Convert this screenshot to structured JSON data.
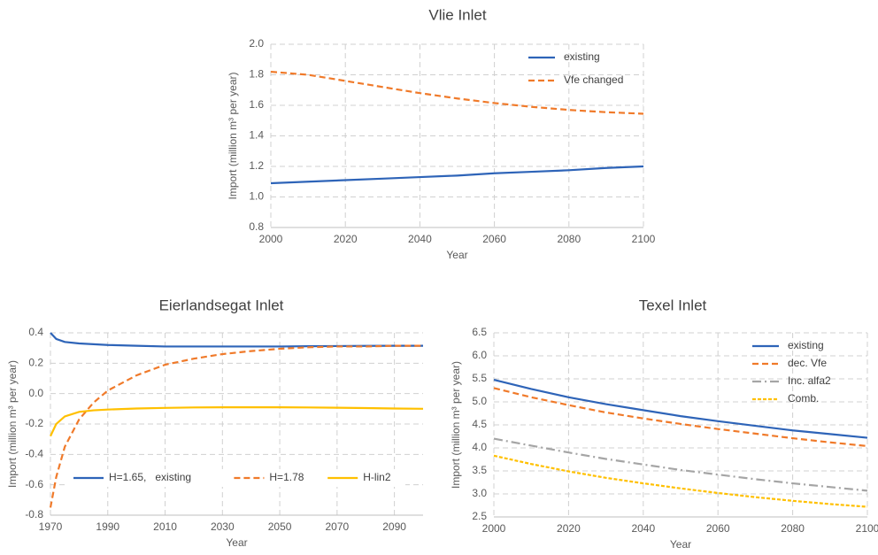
{
  "chart_data": [
    {
      "type": "line",
      "title": "Vlie Inlet",
      "x_label": "Year",
      "y_label": "Import (million m³ per year)",
      "x": [
        2000,
        2010,
        2020,
        2030,
        2040,
        2050,
        2060,
        2070,
        2080,
        2090,
        2100
      ],
      "series": [
        {
          "name": "existing",
          "color": "#2e64b8",
          "style": "solid",
          "values": [
            1.09,
            1.1,
            1.11,
            1.12,
            1.13,
            1.14,
            1.155,
            1.165,
            1.175,
            1.19,
            1.2
          ]
        },
        {
          "name": "Vfe changed",
          "color": "#f07a2a",
          "style": "dashed",
          "values": [
            1.82,
            1.8,
            1.76,
            1.72,
            1.68,
            1.645,
            1.615,
            1.59,
            1.57,
            1.555,
            1.545
          ]
        }
      ],
      "xlim": [
        2000,
        2100
      ],
      "xticks": [
        2000,
        2020,
        2040,
        2060,
        2080,
        2100
      ],
      "ylim": [
        0.8,
        2.0
      ],
      "yticks": [
        0.8,
        {
          "value": 1,
          "label": "1.0"
        },
        1.2,
        1.4,
        1.6,
        1.8,
        {
          "value": 2,
          "label": "2.0"
        }
      ],
      "grid": true,
      "legend": "upper right"
    },
    {
      "type": "line",
      "title": "Eierlandsegat Inlet",
      "x_label": "Year",
      "y_label": "Import (million m³ per year)",
      "x": [
        1970,
        1972,
        1975,
        1980,
        1985,
        1990,
        2000,
        2010,
        2020,
        2030,
        2040,
        2050,
        2060,
        2070,
        2080,
        2090,
        2100
      ],
      "series": [
        {
          "name": "H=1.65,   existing",
          "color": "#2e64b8",
          "style": "solid",
          "values": [
            0.4,
            0.36,
            0.34,
            0.33,
            0.325,
            0.32,
            0.315,
            0.31,
            0.31,
            0.31,
            0.31,
            0.31,
            0.312,
            0.313,
            0.314,
            0.315,
            0.315
          ]
        },
        {
          "name": "H=1.78",
          "color": "#f07a2a",
          "style": "dashed",
          "values": [
            -0.75,
            -0.55,
            -0.35,
            -0.17,
            -0.06,
            0.02,
            0.12,
            0.19,
            0.23,
            0.26,
            0.28,
            0.295,
            0.305,
            0.31,
            0.31,
            0.315,
            0.315
          ]
        },
        {
          "name": "H-lin2",
          "color": "#ffc000",
          "style": "solid",
          "values": [
            -0.28,
            -0.2,
            -0.15,
            -0.12,
            -0.11,
            -0.105,
            -0.098,
            -0.094,
            -0.091,
            -0.09,
            -0.09,
            -0.09,
            -0.091,
            -0.093,
            -0.095,
            -0.098,
            -0.1
          ]
        }
      ],
      "xlim": [
        1970,
        2100
      ],
      "xticks": [
        1970,
        1990,
        2010,
        2030,
        2050,
        2070,
        2090
      ],
      "ylim": [
        -0.8,
        0.4
      ],
      "yticks": [
        -0.8,
        -0.6,
        -0.4,
        -0.2,
        {
          "value": 0,
          "label": "0.0"
        },
        0.2,
        0.4
      ],
      "grid": true,
      "legend": "lower center"
    },
    {
      "type": "line",
      "title": "Texel Inlet",
      "x_label": "Year",
      "y_label": "Import (million m³ per year)",
      "x": [
        2000,
        2010,
        2020,
        2030,
        2040,
        2050,
        2060,
        2070,
        2080,
        2090,
        2100
      ],
      "series": [
        {
          "name": "existing",
          "color": "#2e64b8",
          "style": "solid",
          "values": [
            5.48,
            5.28,
            5.1,
            4.95,
            4.82,
            4.69,
            4.58,
            4.48,
            4.38,
            4.3,
            4.22
          ]
        },
        {
          "name": "dec. Vfe",
          "color": "#f07a2a",
          "style": "dashed",
          "values": [
            5.3,
            5.1,
            4.93,
            4.77,
            4.64,
            4.52,
            4.41,
            4.31,
            4.21,
            4.12,
            4.04
          ]
        },
        {
          "name": "Inc. alfa2",
          "color": "#a5a5a5",
          "style": "dashdot",
          "values": [
            4.2,
            4.05,
            3.9,
            3.76,
            3.64,
            3.52,
            3.42,
            3.32,
            3.23,
            3.15,
            3.07
          ]
        },
        {
          "name": "Comb.",
          "color": "#ffc000",
          "style": "dotted",
          "values": [
            3.83,
            3.65,
            3.49,
            3.35,
            3.23,
            3.12,
            3.02,
            2.93,
            2.85,
            2.78,
            2.72
          ]
        }
      ],
      "xlim": [
        2000,
        2100
      ],
      "xticks": [
        2000,
        2020,
        2040,
        2060,
        2080,
        2100
      ],
      "ylim": [
        2.5,
        6.5
      ],
      "yticks": [
        2.5,
        {
          "value": 3,
          "label": "3.0"
        },
        3.5,
        {
          "value": 4,
          "label": "4.0"
        },
        4.5,
        {
          "value": 5,
          "label": "5.0"
        },
        5.5,
        {
          "value": 6,
          "label": "6.0"
        },
        6.5
      ],
      "grid": true,
      "legend": "upper right"
    }
  ]
}
